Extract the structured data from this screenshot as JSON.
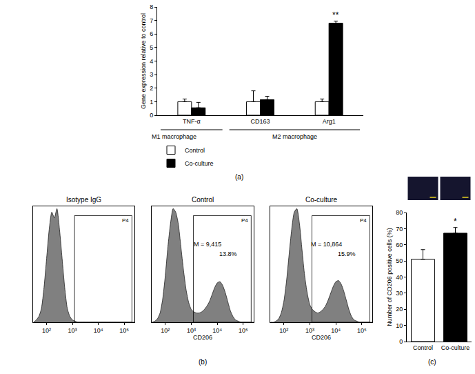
{
  "chart_data": [
    {
      "type": "bar",
      "panel": "(a)",
      "categories": [
        "TNF-α",
        "CD163",
        "Arg1"
      ],
      "groups": [
        {
          "label": "M1 macrophage",
          "categories": [
            "TNF-α"
          ]
        },
        {
          "label": "M2 macrophage",
          "categories": [
            "CD163",
            "Arg1"
          ]
        }
      ],
      "series": [
        {
          "name": "Control",
          "color": "#ffffff",
          "values": [
            1,
            1,
            1
          ],
          "errors": [
            0.2,
            0.8,
            0.2
          ]
        },
        {
          "name": "Co-culture",
          "color": "#000000",
          "values": [
            0.55,
            1.15,
            6.8
          ],
          "errors": [
            0.4,
            0.25,
            0.15
          ]
        }
      ],
      "y_label": "Gene expression relative to control",
      "ylim": [
        0,
        8
      ],
      "yticks": [
        0,
        1,
        2,
        3,
        4,
        5,
        6,
        7,
        8
      ],
      "annotations": [
        {
          "category": "Arg1",
          "series": "Co-culture",
          "text": "**"
        }
      ],
      "legend": "bottom left",
      "grid": false
    },
    {
      "type": "area",
      "title": "Isotype IgG",
      "x": [
        31.6,
        39.8,
        50.1,
        63.1,
        79.4,
        100,
        125.9,
        158.5,
        199.5,
        251.2,
        316.2,
        398.1,
        501.2,
        631,
        794.3,
        1000,
        1258.9,
        1584.9,
        1995.3,
        2511.9,
        3162.3,
        3981.1,
        5011.9,
        6309.6,
        7943.3,
        10000,
        12589,
        15849,
        19953,
        25119,
        31623,
        39811,
        50119,
        63096,
        79433,
        100000,
        125893,
        158489,
        199526,
        251189
      ],
      "values": [
        0,
        2,
        5,
        12,
        30,
        55,
        80,
        95,
        90,
        98,
        80,
        55,
        30,
        12,
        5,
        2,
        1,
        0,
        0,
        0,
        0,
        0,
        0,
        0,
        0,
        0,
        0,
        0,
        0,
        0,
        0,
        0,
        0,
        0,
        0,
        0,
        0,
        0,
        0,
        0
      ],
      "color": "#808080",
      "log": "x",
      "xlim": [
        30,
        250000
      ],
      "xticks": [
        {
          "value": 100,
          "label": "10²"
        },
        {
          "value": 1000,
          "label": "10³"
        },
        {
          "value": 10000,
          "label": "10⁴"
        },
        {
          "value": 100000,
          "label": "10⁵"
        }
      ],
      "ylim": [
        0,
        100
      ],
      "tick_labels": "x",
      "grid": false,
      "gate": {
        "label": "P4",
        "x0": 1200,
        "x1": 200000,
        "y1": 92
      }
    },
    {
      "type": "area",
      "title": "Control",
      "panel": "(b)",
      "x_label": "CD206",
      "x": [
        31.6,
        39.8,
        50.1,
        63.1,
        79.4,
        100,
        125.9,
        158.5,
        199.5,
        251.2,
        316.2,
        398.1,
        501.2,
        631,
        794.3,
        1000,
        1258.9,
        1584.9,
        1995.3,
        2511.9,
        3162.3,
        3981.1,
        5011.9,
        6309.6,
        7943.3,
        10000,
        12589,
        15849,
        19953,
        25119,
        31623,
        39811,
        50119,
        63096,
        79433,
        100000,
        125893,
        158489,
        199526,
        251189
      ],
      "values": [
        0,
        1,
        3,
        8,
        20,
        40,
        65,
        85,
        98,
        95,
        85,
        65,
        45,
        28,
        17,
        11,
        9,
        8,
        8,
        9,
        11,
        14,
        18,
        24,
        30,
        34,
        35,
        32,
        26,
        18,
        10,
        5,
        2,
        1,
        0,
        0,
        0,
        0,
        0,
        0
      ],
      "color": "#808080",
      "log": "x",
      "xlim": [
        30,
        250000
      ],
      "xticks": [
        {
          "value": 100,
          "label": "10²"
        },
        {
          "value": 1000,
          "label": "10³"
        },
        {
          "value": 10000,
          "label": "10⁴"
        },
        {
          "value": 100000,
          "label": "10⁵"
        }
      ],
      "ylim": [
        0,
        100
      ],
      "tick_labels": "x",
      "grid": false,
      "gate": {
        "label": "P4",
        "x0": 1200,
        "x1": 200000,
        "y1": 92
      },
      "annotations": [
        "M = 9,415",
        "13.8%"
      ]
    },
    {
      "type": "area",
      "title": "Co-culture",
      "x_label": "CD206",
      "x": [
        31.6,
        39.8,
        50.1,
        63.1,
        79.4,
        100,
        125.9,
        158.5,
        199.5,
        251.2,
        316.2,
        398.1,
        501.2,
        631,
        794.3,
        1000,
        1258.9,
        1584.9,
        1995.3,
        2511.9,
        3162.3,
        3981.1,
        5011.9,
        6309.6,
        7943.3,
        10000,
        12589,
        15849,
        19953,
        25119,
        31623,
        39811,
        50119,
        63096,
        79433,
        100000,
        125893,
        158489,
        199526,
        251189
      ],
      "values": [
        0,
        0,
        1,
        3,
        8,
        18,
        35,
        58,
        80,
        95,
        98,
        85,
        62,
        40,
        25,
        15,
        11,
        9,
        8,
        9,
        11,
        14,
        19,
        25,
        31,
        35,
        36,
        33,
        27,
        19,
        11,
        5,
        2,
        1,
        0,
        0,
        0,
        0,
        0,
        0
      ],
      "color": "#808080",
      "log": "x",
      "xlim": [
        30,
        250000
      ],
      "xticks": [
        {
          "value": 100,
          "label": "10²"
        },
        {
          "value": 1000,
          "label": "10³"
        },
        {
          "value": 10000,
          "label": "10⁴"
        },
        {
          "value": 100000,
          "label": "10⁵"
        }
      ],
      "ylim": [
        0,
        100
      ],
      "tick_labels": "x",
      "grid": false,
      "gate": {
        "label": "P4",
        "x0": 1200,
        "x1": 200000,
        "y1": 92
      },
      "annotations": [
        "M = 10,864",
        "15.9%"
      ]
    },
    {
      "type": "bar",
      "panel": "(c)",
      "categories": [
        "Control",
        "Co-culture"
      ],
      "values": [
        51,
        67.2
      ],
      "errors": [
        6,
        3.5
      ],
      "colors": [
        "#ffffff",
        "#000000"
      ],
      "y_label": "Number of CD206 positive cells (%)",
      "ylim": [
        0,
        80
      ],
      "yticks": [
        0,
        10,
        20,
        30,
        40,
        50,
        60,
        70,
        80
      ],
      "annotations": [
        {
          "category": "Co-culture",
          "text": "*"
        }
      ],
      "grid": false
    }
  ]
}
